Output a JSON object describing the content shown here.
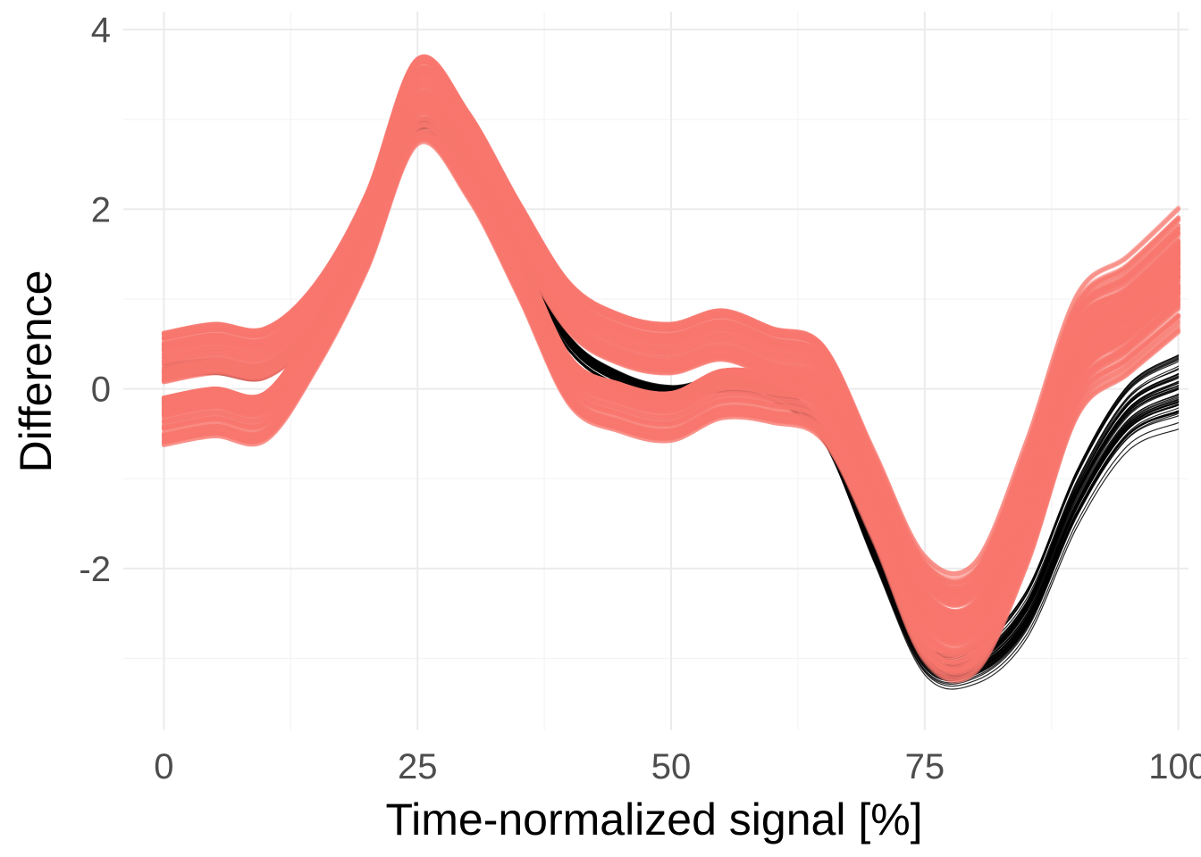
{
  "chart_data": {
    "type": "line",
    "title": "",
    "xlabel": "Time-normalized signal [%]",
    "ylabel": "Difference",
    "xlim": [
      -4,
      101
    ],
    "ylim": [
      -3.8,
      4.2
    ],
    "x_ticks": [
      0,
      25,
      50,
      75,
      100
    ],
    "x_tick_labels": [
      "0",
      "25",
      "50",
      "75",
      "100"
    ],
    "y_ticks": [
      -2,
      0,
      2,
      4
    ],
    "y_tick_labels": [
      "-2",
      "0",
      "2",
      "4"
    ],
    "grid": true,
    "legend": "none",
    "colors": {
      "red": "#F8766D",
      "black": "#000000",
      "grid_major": "#ebebeb",
      "grid_minor": "#f4f4f4"
    },
    "series": [
      {
        "color": "red",
        "x": [
          0,
          5,
          10,
          15,
          20,
          25,
          30,
          35,
          40,
          45,
          50,
          55,
          60,
          65,
          70,
          75,
          80,
          85,
          90,
          95,
          100
        ],
        "values": [
          0.35,
          0.45,
          0.4,
          0.9,
          1.9,
          3.4,
          2.8,
          1.8,
          0.9,
          0.55,
          0.45,
          0.6,
          0.4,
          0.2,
          -1.0,
          -2.2,
          -2.3,
          -1.0,
          0.6,
          1.0,
          1.5
        ]
      },
      {
        "color": "red",
        "x": [
          0,
          5,
          10,
          15,
          20,
          25,
          30,
          35,
          40,
          45,
          50,
          55,
          60,
          65,
          70,
          75,
          80,
          85,
          90,
          95,
          100
        ],
        "values": [
          -0.35,
          -0.25,
          -0.3,
          0.5,
          1.6,
          3.0,
          2.4,
          1.3,
          0.1,
          -0.2,
          -0.3,
          -0.05,
          -0.1,
          -0.3,
          -1.4,
          -2.7,
          -2.8,
          -1.6,
          0.1,
          0.6,
          1.1
        ]
      },
      {
        "color": "black",
        "x": [
          0,
          5,
          10,
          15,
          20,
          25,
          30,
          35,
          40,
          45,
          50,
          55,
          60,
          65,
          70,
          75,
          80,
          85,
          90,
          95,
          100
        ],
        "values": [
          0.2,
          0.25,
          0.2,
          0.7,
          1.7,
          2.9,
          2.5,
          1.5,
          0.5,
          0.1,
          -0.05,
          0.05,
          -0.05,
          -0.5,
          -1.8,
          -3.0,
          -3.05,
          -2.5,
          -1.2,
          -0.3,
          0.0
        ]
      }
    ]
  }
}
